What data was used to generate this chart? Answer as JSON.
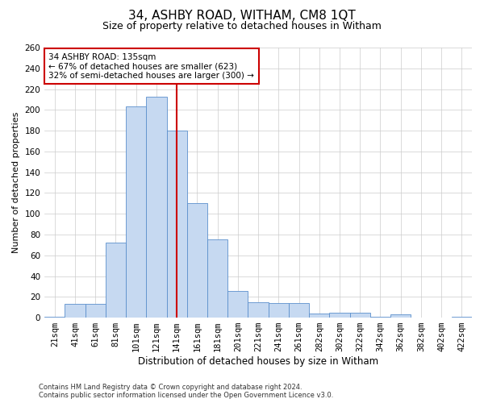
{
  "title": "34, ASHBY ROAD, WITHAM, CM8 1QT",
  "subtitle": "Size of property relative to detached houses in Witham",
  "xlabel": "Distribution of detached houses by size in Witham",
  "ylabel": "Number of detached properties",
  "categories": [
    "21sqm",
    "41sqm",
    "61sqm",
    "81sqm",
    "101sqm",
    "121sqm",
    "141sqm",
    "161sqm",
    "181sqm",
    "201sqm",
    "221sqm",
    "241sqm",
    "261sqm",
    "282sqm",
    "302sqm",
    "322sqm",
    "342sqm",
    "362sqm",
    "382sqm",
    "402sqm",
    "422sqm"
  ],
  "values": [
    1,
    13,
    13,
    72,
    203,
    213,
    180,
    110,
    75,
    26,
    15,
    14,
    14,
    4,
    5,
    5,
    1,
    3,
    0,
    0,
    1
  ],
  "bar_color": "#c6d9f1",
  "bar_edge_color": "#5b8fcc",
  "annotation_line1": "34 ASHBY ROAD: 135sqm",
  "annotation_line2": "← 67% of detached houses are smaller (623)",
  "annotation_line3": "32% of semi-detached houses are larger (300) →",
  "annotation_box_color": "#ffffff",
  "annotation_box_edge": "#cc0000",
  "red_line_color": "#cc0000",
  "footer_line1": "Contains HM Land Registry data © Crown copyright and database right 2024.",
  "footer_line2": "Contains public sector information licensed under the Open Government Licence v3.0.",
  "ylim": [
    0,
    260
  ],
  "yticks": [
    0,
    20,
    40,
    60,
    80,
    100,
    120,
    140,
    160,
    180,
    200,
    220,
    240,
    260
  ],
  "background_color": "#ffffff",
  "grid_color": "#cccccc",
  "title_fontsize": 11,
  "subtitle_fontsize": 9,
  "xlabel_fontsize": 8.5,
  "ylabel_fontsize": 8,
  "tick_fontsize": 7.5,
  "annotation_fontsize": 7.5,
  "footer_fontsize": 6,
  "red_line_index": 6.0
}
